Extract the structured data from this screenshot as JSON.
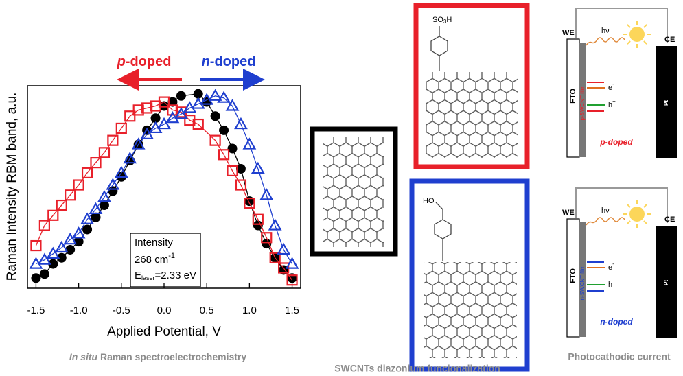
{
  "chart_data": {
    "type": "line",
    "x_label": "Applied Potential, V",
    "y_label": "Raman Intensity RBM band, a.u.",
    "xlim": [
      -1.6,
      1.6
    ],
    "ylim": [
      0,
      1
    ],
    "xticks": [
      -1.5,
      {
        "value": -1.0,
        "label": "-1.0"
      },
      -0.5,
      {
        "value": 0.0,
        "label": "0.0"
      },
      0.5,
      {
        "value": 1.0,
        "label": "1.0"
      },
      1.5
    ],
    "series": [
      {
        "color": "#000000",
        "marker": "circle",
        "x": [
          -1.5,
          -1.4,
          -1.3,
          -1.2,
          -1.1,
          -1.0,
          -0.9,
          -0.8,
          -0.7,
          -0.6,
          -0.5,
          -0.4,
          -0.3,
          -0.2,
          -0.1,
          0.0,
          0.1,
          0.2,
          0.4,
          0.5,
          0.6,
          0.7,
          0.8,
          0.9,
          1.0,
          1.1,
          1.2,
          1.3,
          1.4,
          1.5
        ],
        "values": [
          0.05,
          0.07,
          0.12,
          0.15,
          0.19,
          0.23,
          0.29,
          0.35,
          0.41,
          0.48,
          0.55,
          0.63,
          0.71,
          0.78,
          0.84,
          0.9,
          0.92,
          0.95,
          0.96,
          0.92,
          0.85,
          0.78,
          0.69,
          0.59,
          0.43,
          0.31,
          0.22,
          0.15,
          0.09,
          0.05
        ]
      },
      {
        "color": "#e8202a",
        "marker": "square",
        "x": [
          -1.5,
          -1.4,
          -1.3,
          -1.2,
          -1.1,
          -1.0,
          -0.9,
          -0.8,
          -0.7,
          -0.6,
          -0.5,
          -0.4,
          -0.3,
          -0.2,
          -0.1,
          0.0,
          0.1,
          0.2,
          0.3,
          0.4,
          0.6,
          0.7,
          0.8,
          0.9,
          1.0,
          1.1,
          1.2,
          1.3,
          1.4,
          1.5
        ],
        "values": [
          0.21,
          0.31,
          0.36,
          0.41,
          0.46,
          0.51,
          0.57,
          0.62,
          0.67,
          0.73,
          0.79,
          0.85,
          0.88,
          0.89,
          0.9,
          0.92,
          0.88,
          0.87,
          0.83,
          0.81,
          0.73,
          0.66,
          0.58,
          0.51,
          0.42,
          0.34,
          0.25,
          0.15,
          0.1,
          0.04
        ]
      },
      {
        "color": "#1f3fcf",
        "marker": "triangle",
        "x": [
          -1.5,
          -1.4,
          -1.3,
          -1.2,
          -1.1,
          -1.0,
          -0.9,
          -0.8,
          -0.7,
          -0.6,
          -0.5,
          -0.4,
          -0.3,
          -0.2,
          -0.1,
          0.0,
          0.1,
          0.2,
          0.3,
          0.4,
          0.5,
          0.6,
          0.7,
          0.8,
          0.9,
          1.0,
          1.1,
          1.2,
          1.3,
          1.4,
          1.5
        ],
        "values": [
          0.12,
          0.14,
          0.17,
          0.2,
          0.24,
          0.27,
          0.34,
          0.39,
          0.45,
          0.51,
          0.57,
          0.64,
          0.71,
          0.76,
          0.79,
          0.81,
          0.84,
          0.86,
          0.89,
          0.91,
          0.93,
          0.95,
          0.94,
          0.9,
          0.81,
          0.71,
          0.59,
          0.46,
          0.31,
          0.19,
          0.12
        ]
      }
    ],
    "annotations": {
      "p_doped": [
        "p",
        "-doped"
      ],
      "n_doped": [
        "n",
        "-doped"
      ],
      "inset": {
        "line1": "Intensity",
        "line2": "268 cm",
        "line2_sup": "-1",
        "line3": "E",
        "line3_sub": "laser",
        "line3_rest": "=2.33 eV"
      }
    },
    "caption": [
      "In situ",
      " Raman spectroelectrochemistry"
    ]
  },
  "functionalization": {
    "caption": "SWCNTs diazonium funcionalization",
    "sulfo": [
      "SO",
      "3",
      "H"
    ],
    "hydroxy": "HO"
  },
  "photocathode": {
    "caption": "Photocathodic current",
    "cells": [
      {
        "we": "WE",
        "ce": "CE",
        "hv": "hν",
        "electron": [
          "e",
          "-"
        ],
        "hole": [
          "h",
          "+"
        ],
        "fto": "FTO",
        "film": "p-SWCNT film",
        "pt": "Pt",
        "doping": "p-doped"
      },
      {
        "we": "WE",
        "ce": "CE",
        "hv": "hν",
        "electron": [
          "e",
          "-"
        ],
        "hole": [
          "h",
          "+"
        ],
        "fto": "FTO",
        "film": "n-SWCNT film",
        "pt": "Pt",
        "doping": "n-doped"
      }
    ]
  }
}
